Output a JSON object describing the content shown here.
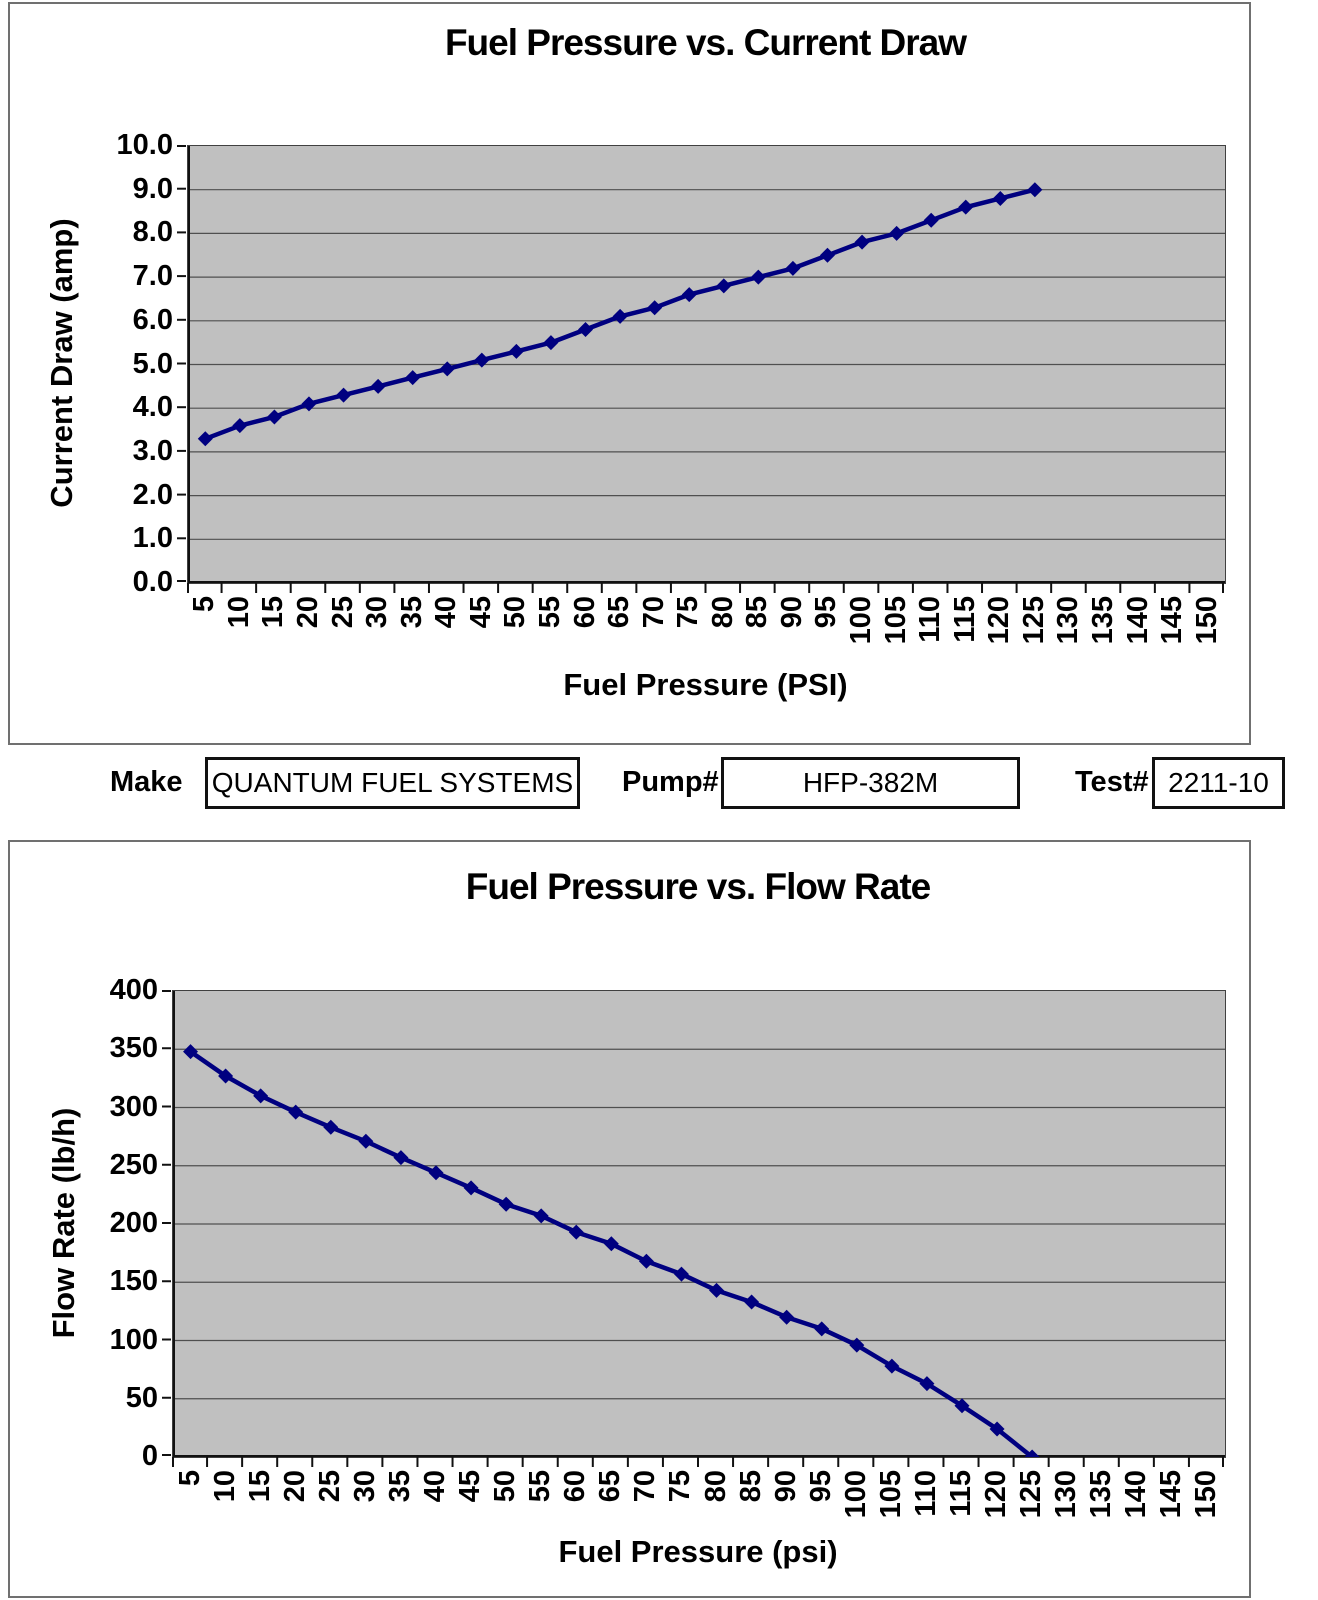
{
  "chart_data": [
    {
      "type": "line",
      "title": "Fuel Pressure vs. Current Draw",
      "xlabel": "Fuel Pressure (PSI)",
      "ylabel": "Current Draw (amp)",
      "x_tick_labels": [
        "5",
        "10",
        "15",
        "20",
        "25",
        "30",
        "35",
        "40",
        "45",
        "50",
        "55",
        "60",
        "65",
        "70",
        "75",
        "80",
        "85",
        "90",
        "95",
        "100",
        "105",
        "110",
        "115",
        "120",
        "125",
        "130",
        "135",
        "140",
        "145",
        "150"
      ],
      "y_tick_labels": [
        "10.0",
        "9.0",
        "8.0",
        "7.0",
        "6.0",
        "5.0",
        "4.0",
        "3.0",
        "2.0",
        "1.0",
        "0.0"
      ],
      "ylim": [
        0,
        10
      ],
      "x": [
        5,
        10,
        15,
        20,
        25,
        30,
        35,
        40,
        45,
        50,
        55,
        60,
        65,
        70,
        75,
        80,
        85,
        90,
        95,
        100,
        105,
        110,
        115,
        120,
        125
      ],
      "values": [
        3.3,
        3.6,
        3.8,
        4.1,
        4.3,
        4.5,
        4.7,
        4.9,
        5.1,
        5.3,
        5.5,
        5.8,
        6.1,
        6.3,
        6.6,
        6.8,
        7.0,
        7.2,
        7.5,
        7.8,
        8.0,
        8.3,
        8.6,
        8.8,
        9.0
      ],
      "marker": "diamond",
      "grid": "horizontal",
      "legend_position": "none"
    },
    {
      "type": "line",
      "title": "Fuel Pressure vs. Flow Rate",
      "xlabel": "Fuel Pressure (psi)",
      "ylabel": "Flow Rate (lb/h)",
      "x_tick_labels": [
        "5",
        "10",
        "15",
        "20",
        "25",
        "30",
        "35",
        "40",
        "45",
        "50",
        "55",
        "60",
        "65",
        "70",
        "75",
        "80",
        "85",
        "90",
        "95",
        "100",
        "105",
        "110",
        "115",
        "120",
        "125",
        "130",
        "135",
        "140",
        "145",
        "150"
      ],
      "y_tick_labels": [
        "400",
        "350",
        "300",
        "250",
        "200",
        "150",
        "100",
        "50",
        "0"
      ],
      "ylim": [
        0,
        400
      ],
      "x": [
        5,
        10,
        15,
        20,
        25,
        30,
        35,
        40,
        45,
        50,
        55,
        60,
        65,
        70,
        75,
        80,
        85,
        90,
        95,
        100,
        105,
        110,
        115,
        120,
        125
      ],
      "values": [
        348,
        327,
        310,
        296,
        283,
        271,
        257,
        244,
        231,
        217,
        207,
        193,
        183,
        168,
        157,
        143,
        133,
        120,
        110,
        96,
        78,
        63,
        44,
        24,
        0
      ],
      "marker": "diamond",
      "grid": "horizontal",
      "legend_position": "none"
    }
  ],
  "info_bar": {
    "make_label": "Make",
    "make_value": "QUANTUM FUEL SYSTEMS",
    "pump_label": "Pump#",
    "pump_value": "HFP-382M",
    "test_label": "Test#",
    "test_value": "2211-10"
  },
  "colors": {
    "series_line": "#000080",
    "plot_background": "#c0c0c0",
    "gridline": "#4f4f4f",
    "axis": "#111111",
    "frame_border": "#707070",
    "box_border": "#111111"
  }
}
